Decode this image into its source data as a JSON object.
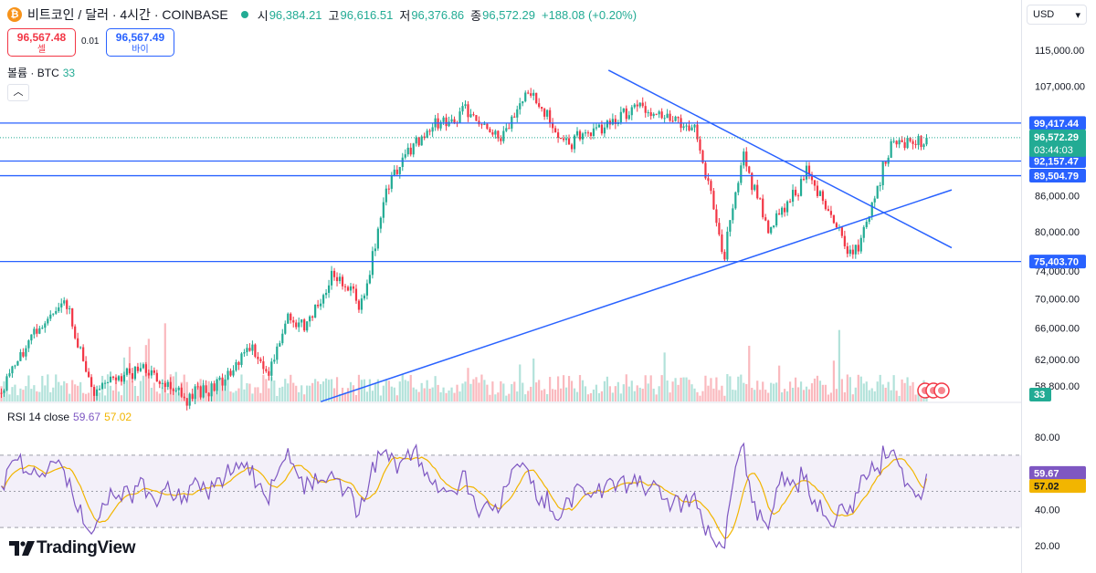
{
  "header": {
    "coin_glyph": "₿",
    "symbol": "비트코인 / 달러 · 4시간 · COINBASE",
    "open_key": "시",
    "open_val": "96,384.21",
    "high_key": "고",
    "high_val": "96,616.51",
    "low_key": "저",
    "low_val": "96,376.86",
    "close_key": "종",
    "close_val": "96,572.29",
    "change": "+188.08 (+0.20%)"
  },
  "trade": {
    "sell_price": "96,567.48",
    "sell_label": "셀",
    "spread": "0.01",
    "buy_price": "96,567.49",
    "buy_label": "바이"
  },
  "volume_label": {
    "name": "볼륨 · BTC",
    "value": "33"
  },
  "collapse_icon": "chevron-up-icon",
  "rsi_label": {
    "name": "RSI 14 close",
    "rsi": "59.67",
    "ma": "57.02"
  },
  "currency": {
    "label": "USD",
    "caret": "▾"
  },
  "logo": {
    "text": "TradingView"
  },
  "colors": {
    "up": "#22ab94",
    "down": "#f23645",
    "line": "#2962ff",
    "rsi": "#7e57c2",
    "rsi_ma": "#f2b500",
    "axis_text": "#131722"
  },
  "chart_data": [
    {
      "type": "candlestick",
      "title": "비트코인 / 달러 · 4시간 · COINBASE",
      "y_axis_ticks": [
        "115,000.00",
        "107,000.00",
        "86,000.00",
        "80,000.00",
        "74,000.00",
        "70,000.00",
        "66,000.00",
        "62,000.00",
        "58,800.00"
      ],
      "y_scale": "log",
      "anchors_x_frac": [
        0,
        0.03,
        0.07,
        0.1,
        0.15,
        0.2,
        0.24,
        0.27,
        0.29,
        0.31,
        0.33,
        0.36,
        0.39,
        0.42,
        0.45,
        0.46,
        0.5,
        0.54,
        0.57,
        0.61,
        0.65,
        0.69,
        0.75,
        0.78,
        0.8,
        0.83,
        0.87,
        0.92,
        0.96,
        1.0
      ],
      "anchors_price": [
        58000,
        64000,
        70000,
        58000,
        61000,
        57500,
        59000,
        63500,
        60000,
        67500,
        66000,
        73500,
        69000,
        89000,
        96000,
        98000,
        102000,
        97000,
        106000,
        95000,
        99000,
        103500,
        98000,
        76000,
        93000,
        80000,
        90000,
        76000,
        95000,
        96572
      ],
      "horizontal_levels": [
        {
          "price": 99417.44,
          "label": "99,417.44"
        },
        {
          "price": 92157.47,
          "label": "92,157.47"
        },
        {
          "price": 89504.79,
          "label": "89,504.79"
        },
        {
          "price": 75403.7,
          "label": "75,403.70"
        }
      ],
      "last_price": {
        "value": "96,572.29",
        "countdown": "03:44:03"
      },
      "volume_last": "33",
      "trendlines": [
        {
          "name": "descending",
          "p1": {
            "x_frac": 0.64,
            "price": 110500
          },
          "p2": {
            "x_frac": 1.0,
            "price": 77500
          }
        },
        {
          "name": "ascending",
          "p1": {
            "x_frac": 0.33,
            "price": 57000
          },
          "p2": {
            "x_frac": 1.0,
            "price": 87000
          }
        }
      ]
    },
    {
      "type": "line",
      "title": "RSI 14 close",
      "y_axis_ticks": [
        "80.00",
        "40.00",
        "20.00"
      ],
      "ylim": [
        15,
        95
      ],
      "band": [
        30,
        70
      ],
      "midline": 50,
      "series": [
        {
          "name": "RSI",
          "last": 59.67
        },
        {
          "name": "MA",
          "last": 57.02
        }
      ]
    }
  ]
}
